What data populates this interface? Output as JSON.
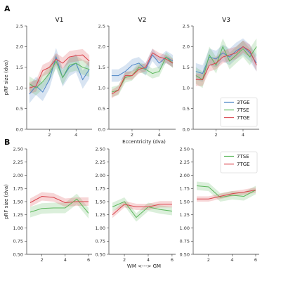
{
  "colors": {
    "3TGE": "#4f86c6",
    "7TSE": "#5cb85c",
    "7TGE": "#d9434b"
  },
  "panel_labels": {
    "a": "A",
    "b": "B"
  },
  "chart_data": [
    {
      "type": "line",
      "panel": "A",
      "title": "V1",
      "xlabel": "",
      "ylabel": "pRF size (dva)",
      "xlim": [
        0.3,
        5.2
      ],
      "ylim": [
        0,
        2.5
      ],
      "xticks": [
        2,
        4
      ],
      "yticks": [
        0.0,
        0.5,
        1.0,
        1.5,
        2.0,
        2.5
      ],
      "yticklabels": [
        "0.0",
        "0.5",
        "1.0",
        "1.5",
        "2.0",
        "2.5"
      ],
      "series": [
        {
          "key": "3TGE",
          "x": [
            0.5,
            1.0,
            1.5,
            2.0,
            2.5,
            3.0,
            3.5,
            4.0,
            4.5,
            5.0
          ],
          "y": [
            0.85,
            1.05,
            0.9,
            1.2,
            1.75,
            1.25,
            1.5,
            1.6,
            1.2,
            1.45
          ],
          "band": 0.22
        },
        {
          "key": "7TSE",
          "x": [
            0.5,
            1.0,
            1.5,
            2.0,
            2.5,
            3.0,
            3.5,
            4.0,
            4.5,
            5.0
          ],
          "y": [
            1.1,
            1.0,
            1.15,
            1.35,
            1.65,
            1.25,
            1.55,
            1.6,
            1.5,
            1.45
          ],
          "band": 0.18
        },
        {
          "key": "7TGE",
          "x": [
            0.5,
            1.0,
            1.5,
            2.0,
            2.5,
            3.0,
            3.5,
            4.0,
            4.5,
            5.0
          ],
          "y": [
            1.0,
            1.05,
            1.42,
            1.5,
            1.7,
            1.6,
            1.75,
            1.78,
            1.8,
            1.65
          ],
          "band": 0.14
        }
      ]
    },
    {
      "type": "line",
      "panel": "A",
      "title": "V2",
      "xlabel": "",
      "ylabel": "",
      "xlim": [
        0.3,
        5.2
      ],
      "ylim": [
        0,
        2.5
      ],
      "xticks": [
        2,
        4
      ],
      "yticks": [
        0.0,
        0.5,
        1.0,
        1.5,
        2.0,
        2.5
      ],
      "yticklabels": [
        "0.0",
        "0.5",
        "1.0",
        "1.5",
        "2.0",
        "2.5"
      ],
      "series": [
        {
          "key": "3TGE",
          "x": [
            0.5,
            1.0,
            1.5,
            2.0,
            2.5,
            3.0,
            3.5,
            4.0,
            4.5,
            5.0
          ],
          "y": [
            1.3,
            1.3,
            1.4,
            1.55,
            1.6,
            1.45,
            1.8,
            1.6,
            1.75,
            1.65
          ],
          "band": 0.15
        },
        {
          "key": "7TSE",
          "x": [
            0.5,
            1.0,
            1.5,
            2.0,
            2.5,
            3.0,
            3.5,
            4.0,
            4.5,
            5.0
          ],
          "y": [
            0.9,
            0.95,
            1.25,
            1.3,
            1.5,
            1.45,
            1.35,
            1.4,
            1.75,
            1.6
          ],
          "band": 0.12
        },
        {
          "key": "7TGE",
          "x": [
            0.5,
            1.0,
            1.5,
            2.0,
            2.5,
            3.0,
            3.5,
            4.0,
            4.5,
            5.0
          ],
          "y": [
            0.85,
            0.95,
            1.3,
            1.3,
            1.45,
            1.5,
            1.85,
            1.75,
            1.7,
            1.6
          ],
          "band": 0.1
        }
      ]
    },
    {
      "type": "line",
      "panel": "A",
      "title": "V3",
      "xlabel": "",
      "ylabel": "",
      "xlim": [
        0.3,
        5.2
      ],
      "ylim": [
        0,
        2.5
      ],
      "xticks": [
        2,
        4
      ],
      "yticks": [
        0.0,
        0.5,
        1.0,
        1.5,
        2.0,
        2.5
      ],
      "yticklabels": [
        "0.0",
        "0.5",
        "1.0",
        "1.5",
        "2.0",
        "2.5"
      ],
      "legend": [
        "3TGE",
        "7TSE",
        "7TGE"
      ],
      "series": [
        {
          "key": "3TGE",
          "x": [
            0.5,
            1.0,
            1.5,
            2.0,
            2.5,
            3.0,
            3.5,
            4.0,
            4.5,
            5.0
          ],
          "y": [
            1.4,
            1.35,
            1.75,
            1.7,
            1.85,
            1.75,
            1.9,
            2.0,
            1.85,
            1.6
          ],
          "band": 0.2
        },
        {
          "key": "7TSE",
          "x": [
            0.5,
            1.0,
            1.5,
            2.0,
            2.5,
            3.0,
            3.5,
            4.0,
            4.5,
            5.0
          ],
          "y": [
            1.3,
            1.2,
            1.8,
            1.55,
            2.0,
            1.65,
            1.8,
            1.95,
            1.75,
            2.0
          ],
          "band": 0.2
        },
        {
          "key": "7TGE",
          "x": [
            0.5,
            1.0,
            1.5,
            2.0,
            2.5,
            3.0,
            3.5,
            4.0,
            4.5,
            5.0
          ],
          "y": [
            1.2,
            1.2,
            1.55,
            1.6,
            1.75,
            1.8,
            1.85,
            2.0,
            1.9,
            1.55
          ],
          "band": 0.15
        }
      ]
    },
    {
      "type": "line",
      "panel": "B",
      "title": "",
      "xlabel": "",
      "ylabel": "pRF size (dva)",
      "xlim": [
        0.7,
        6.3
      ],
      "ylim": [
        0.5,
        2.5
      ],
      "xticks": [
        2,
        4,
        6
      ],
      "yticks": [
        0.5,
        0.75,
        1.0,
        1.25,
        1.5,
        1.75,
        2.0,
        2.25,
        2.5
      ],
      "yticklabels": [
        "0.50",
        "0.75",
        "1.00",
        "1.25",
        "1.50",
        "1.75",
        "2.00",
        "2.25",
        "2.50"
      ],
      "series": [
        {
          "key": "7TSE",
          "x": [
            1,
            2,
            3,
            4,
            5,
            6
          ],
          "y": [
            1.3,
            1.37,
            1.38,
            1.38,
            1.55,
            1.28
          ],
          "band": 0.1
        },
        {
          "key": "7TGE",
          "x": [
            1,
            2,
            3,
            4,
            5,
            6
          ],
          "y": [
            1.48,
            1.6,
            1.58,
            1.48,
            1.5,
            1.5
          ],
          "band": 0.08
        }
      ]
    },
    {
      "type": "line",
      "panel": "B",
      "title": "",
      "xlabel": "",
      "ylabel": "",
      "xlim": [
        0.7,
        6.3
      ],
      "ylim": [
        0.5,
        2.5
      ],
      "xticks": [
        2,
        4,
        6
      ],
      "yticks": [
        0.5,
        0.75,
        1.0,
        1.25,
        1.5,
        1.75,
        2.0,
        2.25,
        2.5
      ],
      "yticklabels": [
        "0.50",
        "0.75",
        "1.00",
        "1.25",
        "1.50",
        "1.75",
        "2.00",
        "2.25",
        "2.50"
      ],
      "series": [
        {
          "key": "7TSE",
          "x": [
            1,
            2,
            3,
            4,
            5,
            6
          ],
          "y": [
            1.4,
            1.5,
            1.2,
            1.4,
            1.35,
            1.32
          ],
          "band": 0.08
        },
        {
          "key": "7TGE",
          "x": [
            1,
            2,
            3,
            4,
            5,
            6
          ],
          "y": [
            1.25,
            1.45,
            1.4,
            1.4,
            1.45,
            1.45
          ],
          "band": 0.06
        }
      ]
    },
    {
      "type": "line",
      "panel": "B",
      "title": "",
      "xlabel": "",
      "ylabel": "",
      "xlim": [
        0.7,
        6.3
      ],
      "ylim": [
        0.5,
        2.5
      ],
      "xticks": [
        2,
        4,
        6
      ],
      "yticks": [
        0.5,
        0.75,
        1.0,
        1.25,
        1.5,
        1.75,
        2.0,
        2.25,
        2.5
      ],
      "yticklabels": [
        "0.50",
        "0.75",
        "1.00",
        "1.25",
        "1.50",
        "1.75",
        "2.00",
        "2.25",
        "2.50"
      ],
      "legend": [
        "7TSE",
        "7TGE"
      ],
      "series": [
        {
          "key": "7TSE",
          "x": [
            1,
            2,
            3,
            4,
            5,
            6
          ],
          "y": [
            1.8,
            1.78,
            1.58,
            1.62,
            1.6,
            1.72
          ],
          "band": 0.08
        },
        {
          "key": "7TGE",
          "x": [
            1,
            2,
            3,
            4,
            5,
            6
          ],
          "y": [
            1.55,
            1.55,
            1.6,
            1.65,
            1.68,
            1.72
          ],
          "band": 0.05
        }
      ]
    }
  ],
  "shared_xlabels": {
    "row_a": "Eccentricity (dva)",
    "row_b": "WM <---> GM"
  }
}
